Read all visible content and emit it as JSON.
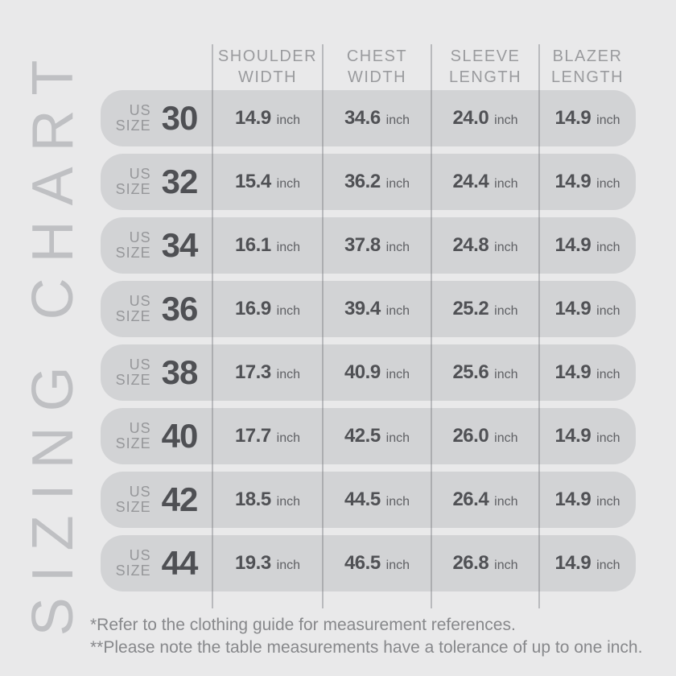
{
  "page": {
    "vertical_title": "SIZING CHART",
    "colors": {
      "background": "#e9e9ea",
      "row_pill": "#d2d3d5",
      "divider": "#babcbe",
      "header_text": "#9a9b9e",
      "size_label": "#96979a",
      "size_number": "#4f5054",
      "value_text": "#505155",
      "unit_text": "#5f6064",
      "vertical_title_text": "#bfc0c3",
      "footnote_text": "#87888b"
    }
  },
  "table": {
    "headers": [
      {
        "line1": "SHOULDER",
        "line2": "WIDTH"
      },
      {
        "line1": "CHEST",
        "line2": "WIDTH"
      },
      {
        "line1": "SLEEVE",
        "line2": "LENGTH"
      },
      {
        "line1": "BLAZER",
        "line2": "LENGTH"
      }
    ],
    "size_label": {
      "line1": "US",
      "line2": "SIZE"
    },
    "unit": "inch",
    "rows": [
      {
        "size": "30",
        "values": [
          "14.9",
          "34.6",
          "24.0",
          "14.9"
        ]
      },
      {
        "size": "32",
        "values": [
          "15.4",
          "36.2",
          "24.4",
          "14.9"
        ]
      },
      {
        "size": "34",
        "values": [
          "16.1",
          "37.8",
          "24.8",
          "14.9"
        ]
      },
      {
        "size": "36",
        "values": [
          "16.9",
          "39.4",
          "25.2",
          "14.9"
        ]
      },
      {
        "size": "38",
        "values": [
          "17.3",
          "40.9",
          "25.6",
          "14.9"
        ]
      },
      {
        "size": "40",
        "values": [
          "17.7",
          "42.5",
          "26.0",
          "14.9"
        ]
      },
      {
        "size": "42",
        "values": [
          "18.5",
          "44.5",
          "26.4",
          "14.9"
        ]
      },
      {
        "size": "44",
        "values": [
          "19.3",
          "46.5",
          "26.8",
          "14.9"
        ]
      }
    ]
  },
  "footnotes": [
    "*Refer to the clothing guide for measurement references.",
    "**Please note the table measurements have a tolerance of up to one inch."
  ],
  "chart_data": {
    "type": "table",
    "title": "SIZING CHART",
    "unit": "inch",
    "columns": [
      "US SIZE",
      "SHOULDER WIDTH",
      "CHEST WIDTH",
      "SLEEVE LENGTH",
      "BLAZER LENGTH"
    ],
    "rows": [
      [
        30,
        14.9,
        34.6,
        24.0,
        14.9
      ],
      [
        32,
        15.4,
        36.2,
        24.4,
        14.9
      ],
      [
        34,
        16.1,
        37.8,
        24.8,
        14.9
      ],
      [
        36,
        16.9,
        39.4,
        25.2,
        14.9
      ],
      [
        38,
        17.3,
        40.9,
        25.6,
        14.9
      ],
      [
        40,
        17.7,
        42.5,
        26.0,
        14.9
      ],
      [
        42,
        18.5,
        44.5,
        26.4,
        14.9
      ],
      [
        44,
        19.3,
        46.5,
        26.8,
        14.9
      ]
    ],
    "notes": [
      "*Refer to the clothing guide for measurement references.",
      "**Please note the table measurements have a tolerance of up to one inch."
    ]
  }
}
